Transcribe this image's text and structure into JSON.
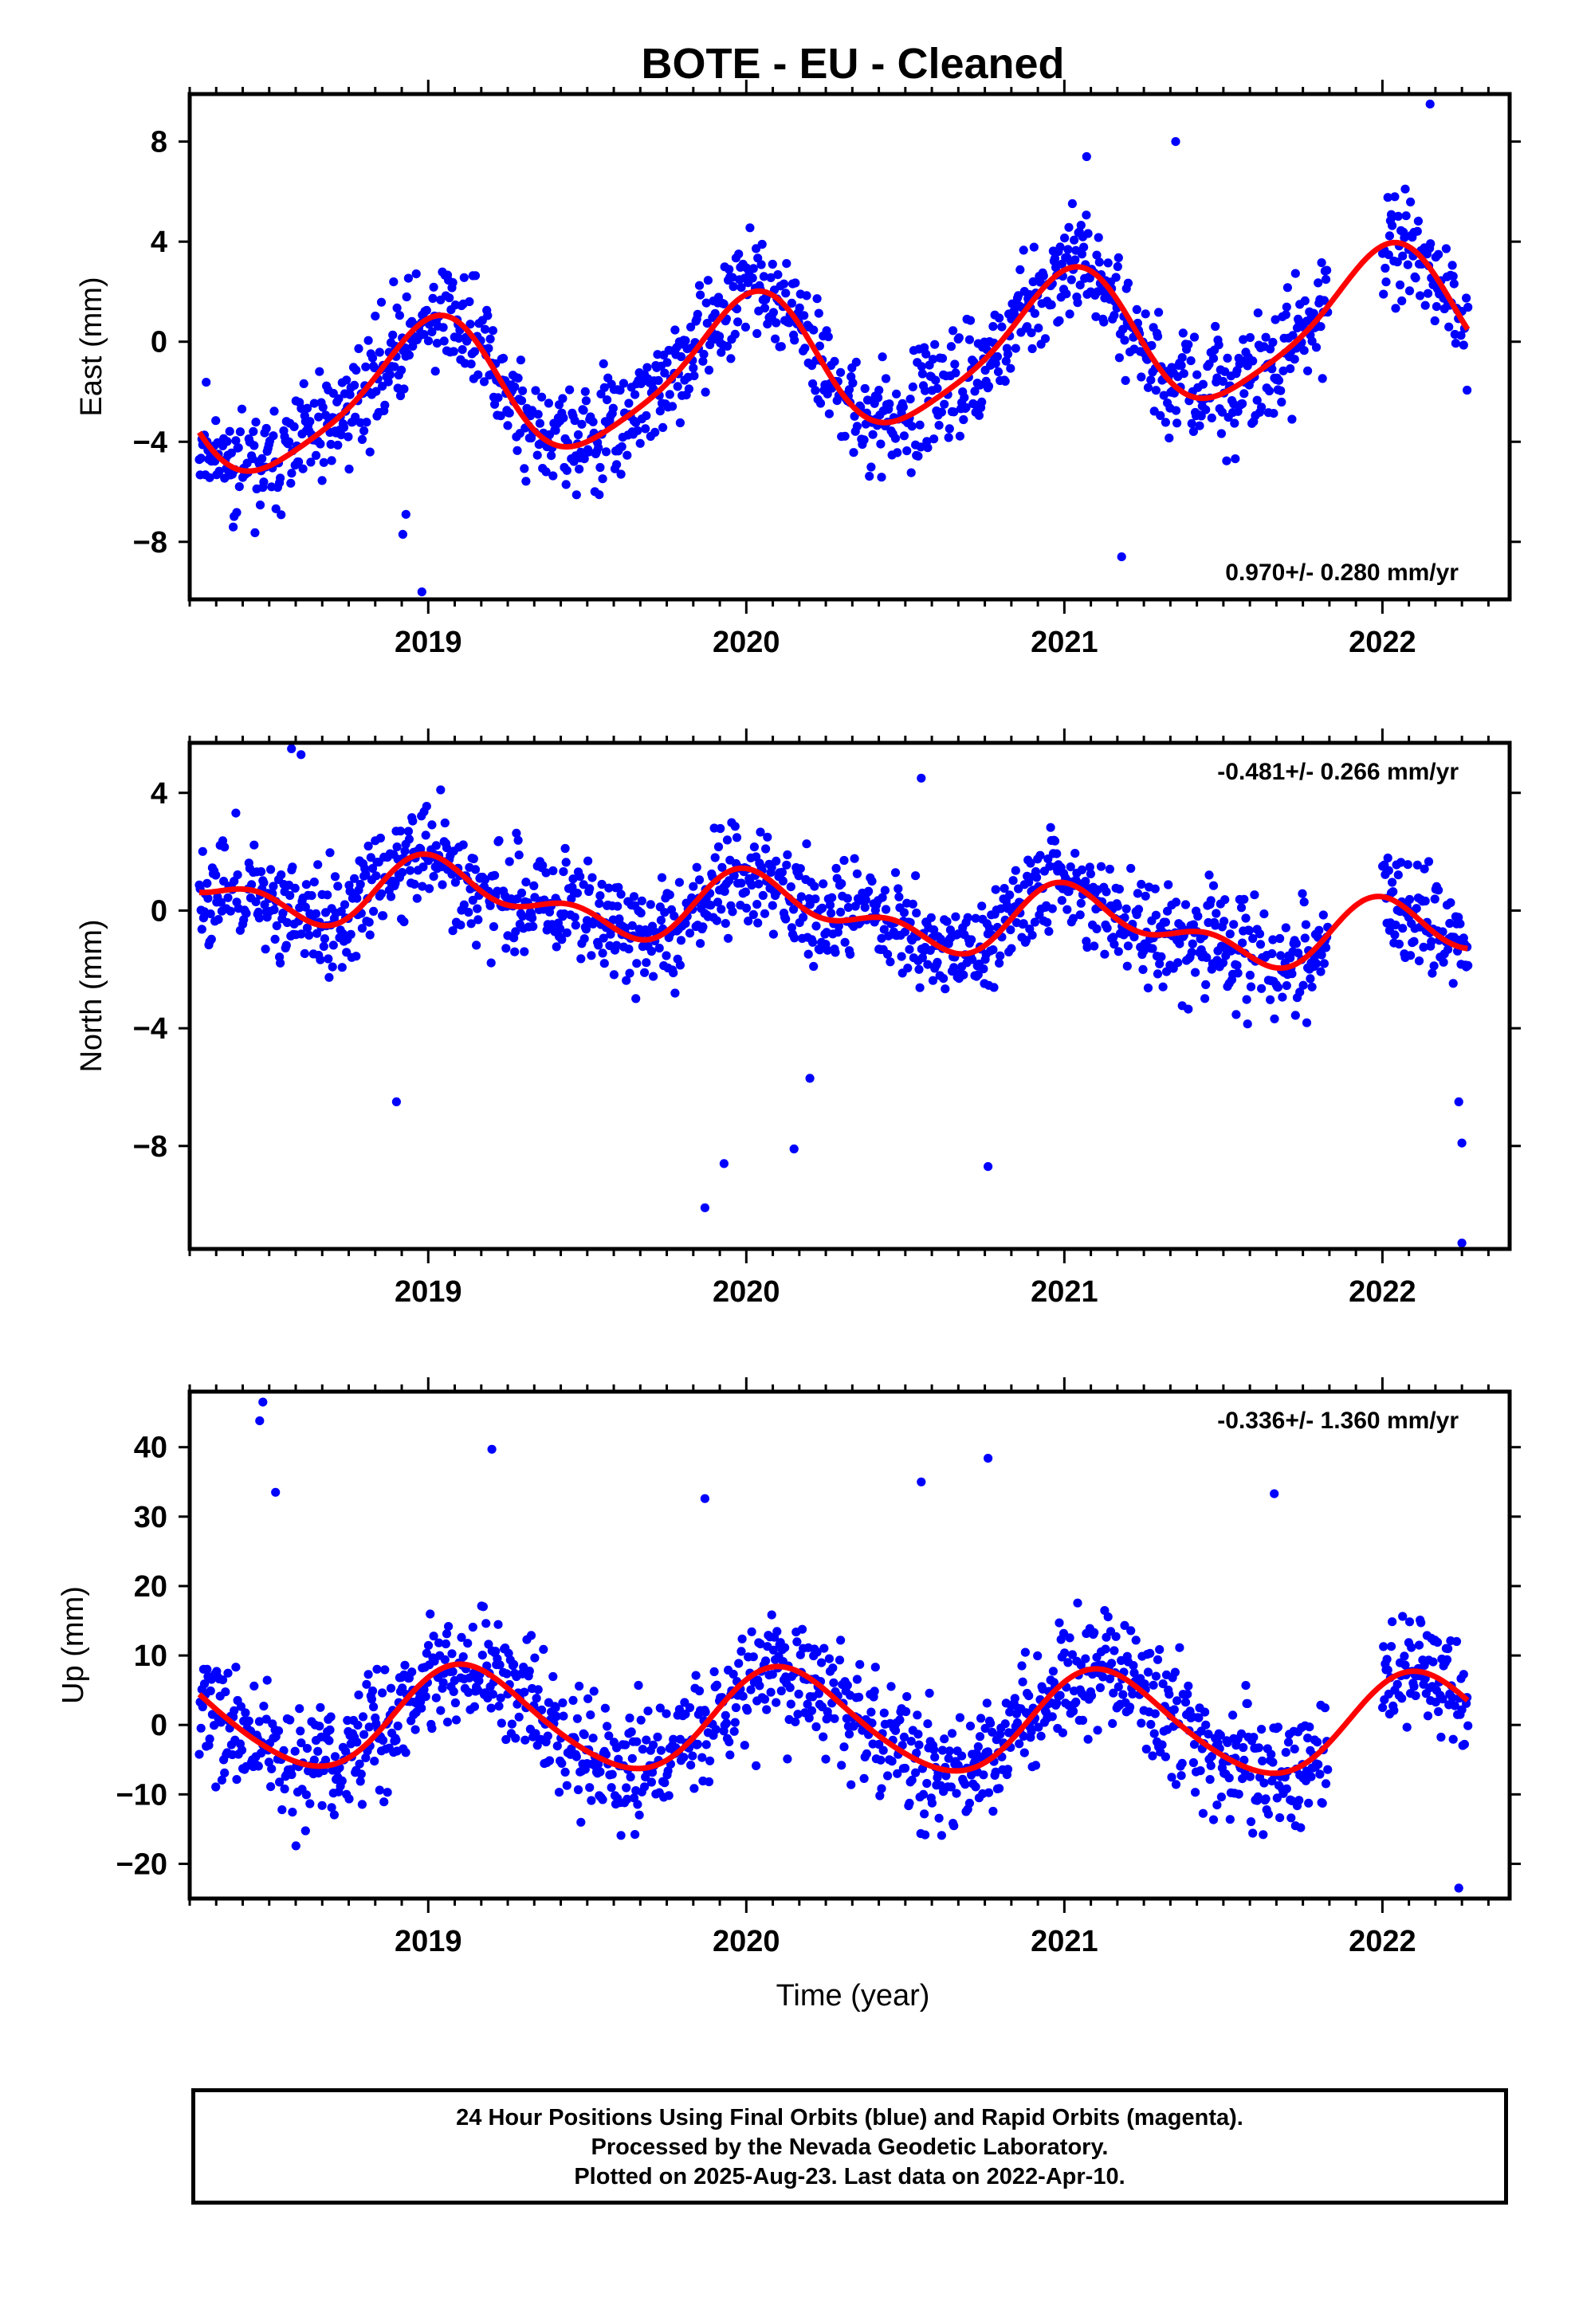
{
  "chart_data": {
    "type": "scatter",
    "title": "BOTE  - EU - Cleaned",
    "xlabel": "Time (year)",
    "x_tick_labels": [
      "2019",
      "2020",
      "2021",
      "2022"
    ],
    "x_ticks": [
      2019,
      2020,
      2021,
      2022
    ],
    "xlim": [
      2018.25,
      2022.4
    ],
    "point_color": "#0000ff",
    "fit_color": "#ff0000",
    "panels": [
      {
        "key": "east",
        "ylabel": "East (mm)",
        "ylim": [
          -10.3,
          9.9
        ],
        "y_ticks": [
          -8,
          -4,
          0,
          4,
          8
        ],
        "y_tick_labels": [
          "−8",
          "−4",
          "0",
          "4",
          "8"
        ],
        "rate_label": "0.970+/- 0.280 mm/yr",
        "rate_position": "bottom-right",
        "fit": {
          "offset": -0.8,
          "slope": 0.97,
          "annual_amp": 2.7,
          "annual_phase": 1.55,
          "semi_amp": 0.5,
          "semi_phase": 0.6,
          "t0": 2020.3
        },
        "noise_sd": 1.1,
        "seed": 11,
        "outliers": [
          [
            2018.98,
            -10.0
          ],
          [
            2018.92,
            -7.7
          ],
          [
            2018.93,
            -6.9
          ],
          [
            2021.18,
            -8.6
          ],
          [
            2021.35,
            8.0
          ],
          [
            2022.15,
            9.5
          ],
          [
            2021.07,
            7.4
          ]
        ]
      },
      {
        "key": "north",
        "ylabel": "North (mm)",
        "ylim": [
          -11.5,
          5.7
        ],
        "y_ticks": [
          -8,
          -4,
          0,
          4
        ],
        "y_tick_labels": [
          "−8",
          "−4",
          "0",
          "4"
        ],
        "rate_label": "-0.481+/- 0.266 mm/yr",
        "rate_position": "top-right",
        "fit": {
          "offset": -0.1,
          "slope": -0.48,
          "annual_amp": 0.9,
          "annual_phase": 1.2,
          "semi_amp": 0.6,
          "semi_phase": 2.0,
          "t0": 2020.3
        },
        "noise_sd": 0.9,
        "seed": 23,
        "outliers": [
          [
            2019.87,
            -10.1
          ],
          [
            2019.93,
            -8.6
          ],
          [
            2018.9,
            -6.5
          ],
          [
            2020.15,
            -8.1
          ],
          [
            2020.2,
            -5.7
          ],
          [
            2020.76,
            -8.7
          ],
          [
            2022.25,
            -11.3
          ],
          [
            2022.25,
            -7.9
          ],
          [
            2022.24,
            -6.5
          ],
          [
            2018.57,
            5.5
          ],
          [
            2018.6,
            5.3
          ],
          [
            2020.55,
            4.5
          ]
        ]
      },
      {
        "key": "up",
        "ylabel": "Up (mm)",
        "ylim": [
          -25,
          48
        ],
        "y_ticks": [
          -20,
          -10,
          0,
          10,
          20,
          30,
          40
        ],
        "y_tick_labels": [
          "−20",
          "−10",
          "0",
          "10",
          "20",
          "30",
          "40"
        ],
        "rate_label": "-0.336+/- 1.360 mm/yr",
        "rate_position": "top-right",
        "fit": {
          "offset": 0.5,
          "slope": -0.34,
          "annual_amp": 7.3,
          "annual_phase": 0.8,
          "semi_amp": 0.8,
          "semi_phase": 1.0,
          "t0": 2020.3
        },
        "noise_sd": 4.5,
        "seed": 37,
        "outliers": [
          [
            2018.48,
            46.5
          ],
          [
            2018.47,
            43.8
          ],
          [
            2018.52,
            33.5
          ],
          [
            2019.2,
            39.7
          ],
          [
            2019.87,
            32.6
          ],
          [
            2020.55,
            35.0
          ],
          [
            2020.76,
            38.4
          ],
          [
            2021.66,
            33.3
          ],
          [
            2022.24,
            -23.5
          ]
        ]
      }
    ]
  },
  "footer": {
    "line1": "24 Hour Positions Using Final Orbits (blue) and Rapid Orbits (magenta).",
    "line2": "Processed by the Nevada Geodetic Laboratory.",
    "line3": "Plotted on 2025-Aug-23. Last data on 2022-Apr-10."
  }
}
